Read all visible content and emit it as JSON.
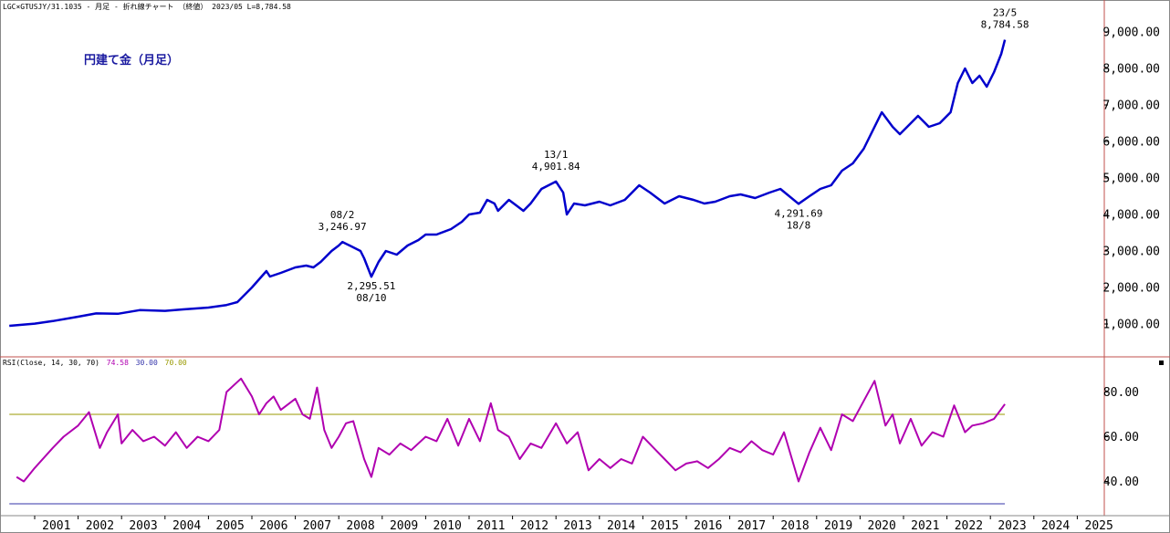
{
  "header_text": "LGC×GTUSJY/31.1035 - 月足 - 折れ線チャート （終値） 2023/05 L=8,784.58",
  "rsi_label": {
    "prefix": "RSI(Close, 14, 30, 70)",
    "v1": "74.58",
    "v2": "30.00",
    "v3": "70.00",
    "colors": {
      "v1": "#b000b0",
      "v2": "#3333aa",
      "v3": "#999900"
    }
  },
  "collapse_icon": "square-icon",
  "chart_data": [
    {
      "type": "line",
      "title": "円建て金（月足）",
      "series": [
        {
          "color": "#0000cc",
          "x": [
            "2000-06",
            "2001-01",
            "2001-06",
            "2002-01",
            "2002-06",
            "2002-12",
            "2003-06",
            "2004-01",
            "2004-06",
            "2005-01",
            "2005-06",
            "2005-09",
            "2006-01",
            "2006-05",
            "2006-06",
            "2006-09",
            "2007-01",
            "2007-04",
            "2007-06",
            "2007-08",
            "2007-11",
            "2008-01",
            "2008-02",
            "2008-04",
            "2008-07",
            "2008-08",
            "2008-10",
            "2008-12",
            "2009-02",
            "2009-05",
            "2009-08",
            "2009-11",
            "2010-01",
            "2010-04",
            "2010-08",
            "2010-11",
            "2011-01",
            "2011-04",
            "2011-06",
            "2011-08",
            "2011-09",
            "2011-12",
            "2012-02",
            "2012-04",
            "2012-06",
            "2012-09",
            "2013-01",
            "2013-03",
            "2013-04",
            "2013-06",
            "2013-09",
            "2014-01",
            "2014-04",
            "2014-08",
            "2014-12",
            "2015-03",
            "2015-07",
            "2015-11",
            "2016-03",
            "2016-06",
            "2016-09",
            "2017-01",
            "2017-04",
            "2017-08",
            "2017-12",
            "2018-03",
            "2018-08",
            "2018-11",
            "2019-02",
            "2019-05",
            "2019-08",
            "2019-11",
            "2020-02",
            "2020-04",
            "2020-07",
            "2020-10",
            "2020-12",
            "2021-02",
            "2021-05",
            "2021-08",
            "2021-11",
            "2022-02",
            "2022-04",
            "2022-06",
            "2022-08",
            "2022-10",
            "2022-12",
            "2023-02",
            "2023-04",
            "2023-05"
          ],
          "y": [
            950,
            1010,
            1080,
            1200,
            1290,
            1280,
            1380,
            1360,
            1400,
            1450,
            1520,
            1600,
            2000,
            2450,
            2300,
            2400,
            2550,
            2600,
            2550,
            2700,
            3000,
            3150,
            3247,
            3150,
            3000,
            2800,
            2296,
            2700,
            3000,
            2900,
            3150,
            3300,
            3450,
            3450,
            3600,
            3800,
            4000,
            4050,
            4400,
            4300,
            4100,
            4400,
            4250,
            4100,
            4300,
            4700,
            4902,
            4600,
            4000,
            4300,
            4250,
            4350,
            4250,
            4400,
            4800,
            4600,
            4300,
            4500,
            4400,
            4300,
            4350,
            4500,
            4550,
            4450,
            4600,
            4700,
            4292,
            4500,
            4700,
            4800,
            5200,
            5400,
            5800,
            6200,
            6800,
            6400,
            6200,
            6400,
            6700,
            6400,
            6500,
            6800,
            7600,
            8000,
            7600,
            7800,
            7500,
            7900,
            8400,
            8785
          ],
          "annotations": [
            {
              "date": "08/2",
              "value": "3,246.97"
            },
            {
              "value": "2,295.51",
              "date": "08/10"
            },
            {
              "date": "13/1",
              "value": "4,901.84"
            },
            {
              "value": "4,291.69",
              "date": "18/8"
            },
            {
              "date": "23/5",
              "value": "8,784.58"
            }
          ]
        }
      ],
      "yticks": [
        "1,000.00",
        "2,000.00",
        "3,000.00",
        "4,000.00",
        "5,000.00",
        "6,000.00",
        "7,000.00",
        "8,000.00",
        "9,000.00"
      ],
      "ylim": [
        0,
        9700
      ]
    },
    {
      "type": "line",
      "series": [
        {
          "color": "#b000b0",
          "x": [
            "2000-08",
            "2000-10",
            "2001-01",
            "2001-06",
            "2001-09",
            "2002-01",
            "2002-04",
            "2002-07",
            "2002-09",
            "2002-12",
            "2003-01",
            "2003-04",
            "2003-07",
            "2003-10",
            "2004-01",
            "2004-04",
            "2004-07",
            "2004-10",
            "2005-01",
            "2005-04",
            "2005-06",
            "2005-10",
            "2006-01",
            "2006-03",
            "2006-05",
            "2006-07",
            "2006-09",
            "2007-01",
            "2007-03",
            "2007-05",
            "2007-07",
            "2007-09",
            "2007-11",
            "2008-01",
            "2008-03",
            "2008-05",
            "2008-08",
            "2008-10",
            "2008-12",
            "2009-03",
            "2009-06",
            "2009-09",
            "2010-01",
            "2010-04",
            "2010-07",
            "2010-10",
            "2011-01",
            "2011-04",
            "2011-07",
            "2011-09",
            "2011-12",
            "2012-03",
            "2012-06",
            "2012-09",
            "2013-01",
            "2013-04",
            "2013-07",
            "2013-10",
            "2014-01",
            "2014-04",
            "2014-07",
            "2014-10",
            "2015-01",
            "2015-04",
            "2015-07",
            "2015-10",
            "2016-01",
            "2016-04",
            "2016-07",
            "2016-10",
            "2017-01",
            "2017-04",
            "2017-07",
            "2017-10",
            "2018-01",
            "2018-04",
            "2018-08",
            "2018-11",
            "2019-02",
            "2019-05",
            "2019-08",
            "2019-11",
            "2020-02",
            "2020-05",
            "2020-08",
            "2020-10",
            "2020-12",
            "2021-03",
            "2021-06",
            "2021-09",
            "2021-12",
            "2022-03",
            "2022-06",
            "2022-08",
            "2022-11",
            "2023-02",
            "2023-05"
          ],
          "y": [
            42,
            40,
            46,
            55,
            60,
            65,
            71,
            55,
            62,
            70,
            57,
            63,
            58,
            60,
            56,
            62,
            55,
            60,
            58,
            63,
            80,
            86,
            78,
            70,
            75,
            78,
            72,
            77,
            70,
            68,
            82,
            63,
            55,
            60,
            66,
            67,
            50,
            42,
            55,
            52,
            57,
            54,
            60,
            58,
            68,
            56,
            68,
            58,
            75,
            63,
            60,
            50,
            57,
            55,
            66,
            57,
            62,
            45,
            50,
            46,
            50,
            48,
            60,
            55,
            50,
            45,
            48,
            49,
            46,
            50,
            55,
            53,
            58,
            54,
            52,
            62,
            40,
            53,
            64,
            54,
            70,
            67,
            76,
            85,
            65,
            70,
            57,
            68,
            56,
            62,
            60,
            74,
            62,
            65,
            66,
            68,
            74.58
          ]
        },
        {
          "name": "30.00",
          "color": "#3333aa",
          "x": [
            "2000-06",
            "2023-05"
          ],
          "y": [
            30,
            30
          ]
        },
        {
          "name": "70.00",
          "color": "#999900",
          "x": [
            "2000-06",
            "2023-05"
          ],
          "y": [
            70,
            70
          ]
        }
      ],
      "yticks": [
        "40.00",
        "60.00",
        "80.00"
      ],
      "ylim": [
        27,
        95
      ]
    }
  ],
  "xticks": [
    "2001",
    "2002",
    "2003",
    "2004",
    "2005",
    "2006",
    "2007",
    "2008",
    "2009",
    "2010",
    "2011",
    "2012",
    "2013",
    "2014",
    "2015",
    "2016",
    "2017",
    "2018",
    "2019",
    "2020",
    "2021",
    "2022",
    "2023",
    "2024",
    "2025"
  ]
}
